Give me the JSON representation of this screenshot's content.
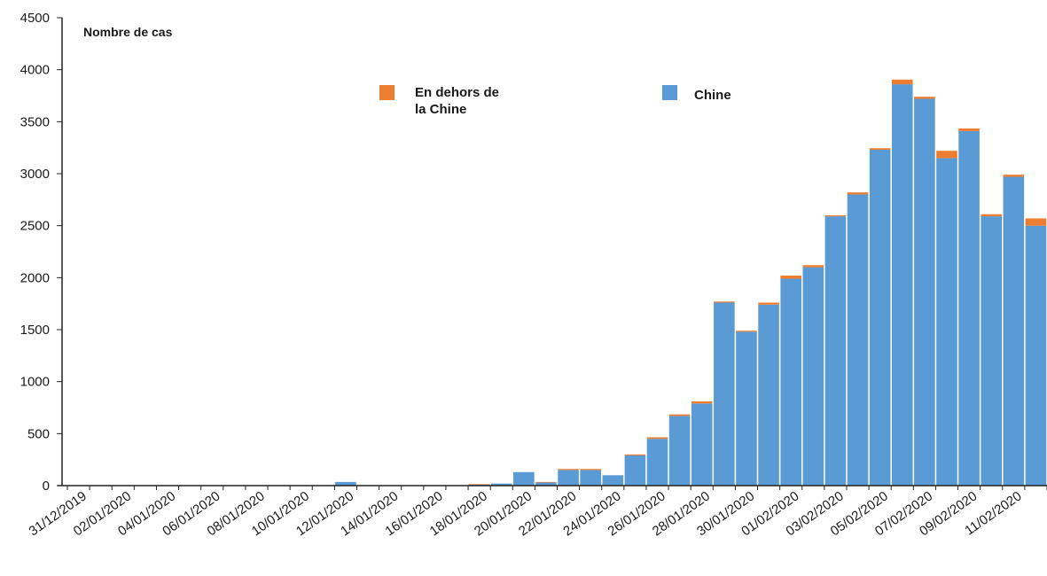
{
  "chart_data": {
    "type": "bar",
    "stacked": true,
    "ylabel": "Nombre de cas",
    "ylim": [
      0,
      4500
    ],
    "yticks": [
      0,
      500,
      1000,
      1500,
      2000,
      2500,
      3000,
      3500,
      4000,
      4500
    ],
    "x_tick_labels": [
      "31/12/2019",
      "02/01/2020",
      "04/01/2020",
      "06/01/2020",
      "08/01/2020",
      "10/01/2020",
      "12/01/2020",
      "14/01/2020",
      "16/01/2020",
      "18/01/2020",
      "20/01/2020",
      "22/01/2020",
      "24/01/2020",
      "26/01/2020",
      "28/01/2020",
      "30/01/2020",
      "01/02/2020",
      "03/02/2020",
      "05/02/2020",
      "07/02/2020",
      "09/02/2020",
      "11/02/2020"
    ],
    "categories": [
      "31/12/2019",
      "01/01/2020",
      "02/01/2020",
      "03/01/2020",
      "04/01/2020",
      "05/01/2020",
      "06/01/2020",
      "07/01/2020",
      "08/01/2020",
      "09/01/2020",
      "10/01/2020",
      "11/01/2020",
      "12/01/2020",
      "13/01/2020",
      "14/01/2020",
      "15/01/2020",
      "16/01/2020",
      "17/01/2020",
      "18/01/2020",
      "19/01/2020",
      "20/01/2020",
      "21/01/2020",
      "22/01/2020",
      "23/01/2020",
      "24/01/2020",
      "25/01/2020",
      "26/01/2020",
      "27/01/2020",
      "28/01/2020",
      "29/01/2020",
      "30/01/2020",
      "31/01/2020",
      "01/02/2020",
      "02/02/2020",
      "03/02/2020",
      "04/02/2020",
      "05/02/2020",
      "06/02/2020",
      "07/02/2020",
      "08/02/2020",
      "09/02/2020",
      "10/02/2020",
      "11/02/2020",
      "12/02/2020"
    ],
    "series": [
      {
        "name": "Chine",
        "color": "#5b9bd5",
        "values": [
          0,
          0,
          0,
          0,
          0,
          0,
          0,
          0,
          0,
          0,
          0,
          0,
          35,
          0,
          0,
          0,
          0,
          0,
          10,
          20,
          130,
          30,
          150,
          150,
          100,
          290,
          450,
          670,
          790,
          1760,
          1480,
          1740,
          1990,
          2100,
          2590,
          2800,
          3230,
          3860,
          3720,
          3150,
          3410,
          2590,
          2970,
          2500
        ]
      },
      {
        "name": "En dehors de la Chine",
        "color": "#ed7d31",
        "values": [
          0,
          0,
          0,
          0,
          0,
          0,
          0,
          0,
          0,
          0,
          0,
          0,
          0,
          0,
          0,
          0,
          0,
          0,
          5,
          0,
          0,
          5,
          10,
          10,
          0,
          10,
          15,
          15,
          20,
          10,
          10,
          20,
          30,
          20,
          10,
          20,
          15,
          45,
          20,
          70,
          25,
          20,
          20,
          70
        ]
      }
    ],
    "legend": [
      {
        "label": "En dehors de\nla Chine",
        "color": "#ed7d31"
      },
      {
        "label": "Chine",
        "color": "#5b9bd5"
      }
    ]
  }
}
